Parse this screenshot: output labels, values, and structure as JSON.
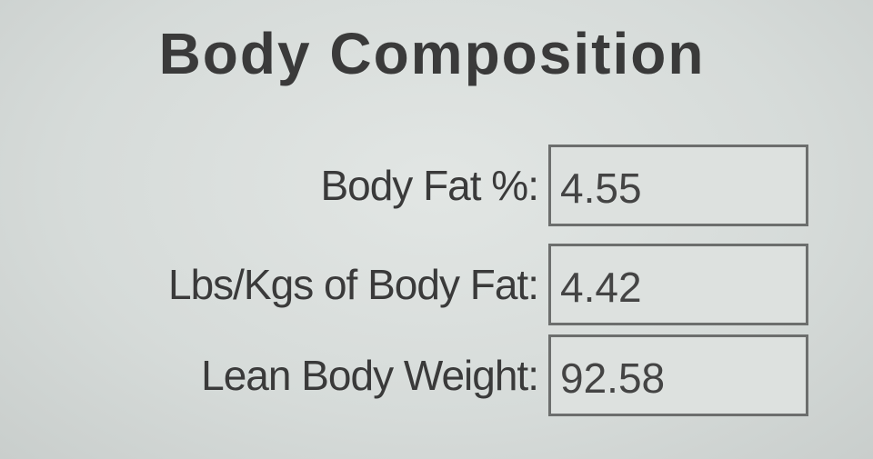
{
  "title": "Body Composition",
  "fields": [
    {
      "label": "Body Fat %:",
      "value": "4.55"
    },
    {
      "label": "Lbs/Kgs of Body Fat:",
      "value": "4.42"
    },
    {
      "label": "Lean Body Weight:",
      "value": "92.58"
    }
  ]
}
